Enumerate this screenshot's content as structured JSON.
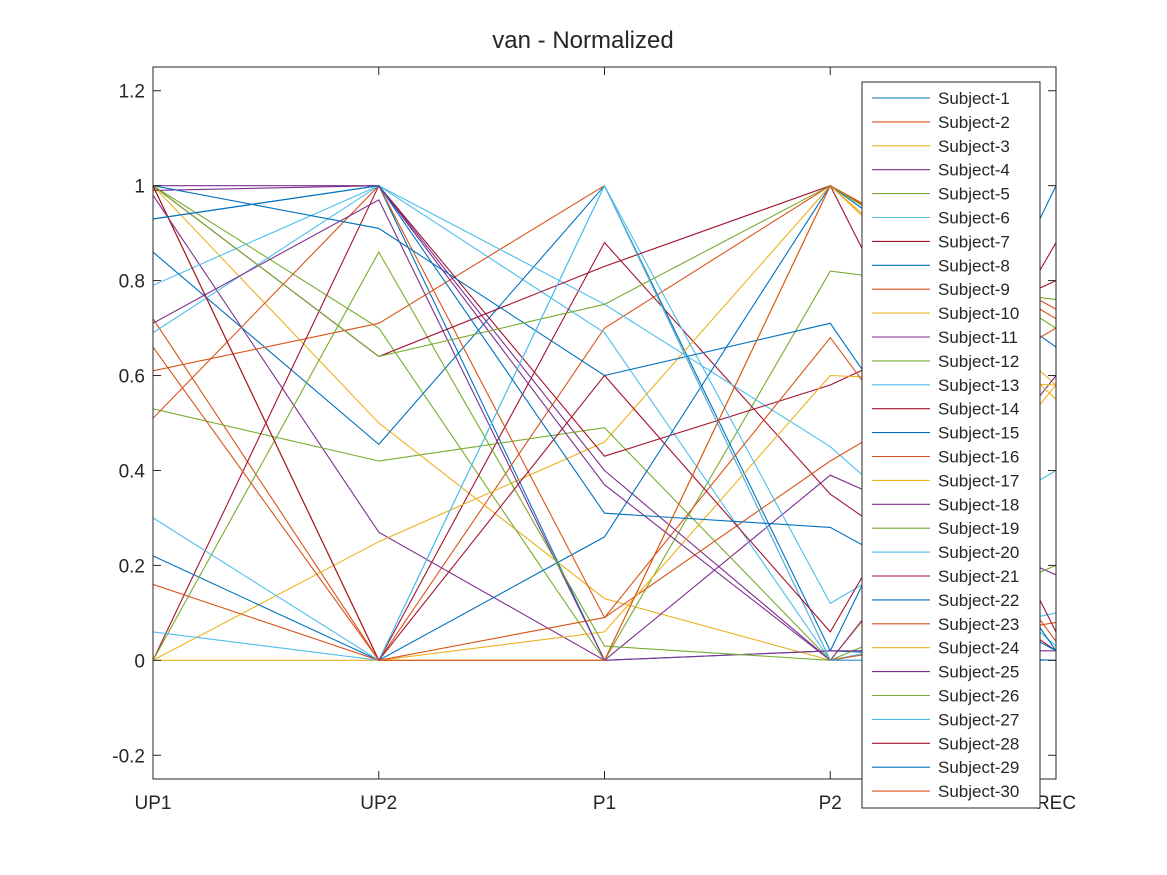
{
  "figure": {
    "title": "van - Normalized"
  },
  "chart_data": {
    "type": "line",
    "title": "van - Normalized",
    "xlabel": "",
    "ylabel": "",
    "categories": [
      "UP1",
      "UP2",
      "P1",
      "P2",
      "REC"
    ],
    "ylim": [
      -0.25,
      1.25
    ],
    "yticks": [
      "-0.2",
      "0",
      "0.2",
      "0.4",
      "0.6",
      "0.8",
      "1",
      "1.2"
    ],
    "ytick_values": [
      -0.2,
      0,
      0.2,
      0.4,
      0.6,
      0.8,
      1,
      1.2
    ],
    "grid": false,
    "legend_location": "northeast",
    "colors": [
      "#0072BD",
      "#D95319",
      "#EDB120",
      "#7E2F8E",
      "#77AC30",
      "#4DBEEE",
      "#A2142F"
    ],
    "series": [
      {
        "name": "Subject-1",
        "values": [
          0.93,
          1.0,
          0.0,
          0.02,
          1.0
        ]
      },
      {
        "name": "Subject-2",
        "values": [
          0.72,
          0.0,
          0.7,
          1.0,
          0.72
        ]
      },
      {
        "name": "Subject-3",
        "values": [
          1.0,
          0.5,
          0.13,
          0.0,
          0.58
        ]
      },
      {
        "name": "Subject-4",
        "values": [
          0.98,
          0.27,
          0.0,
          0.39,
          0.18
        ]
      },
      {
        "name": "Subject-5",
        "values": [
          1.0,
          0.7,
          0.0,
          0.82,
          0.76
        ]
      },
      {
        "name": "Subject-6",
        "values": [
          0.79,
          1.0,
          0.69,
          0.0,
          0.1
        ]
      },
      {
        "name": "Subject-7",
        "values": [
          1.0,
          0.0,
          0.88,
          0.35,
          0.02
        ]
      },
      {
        "name": "Subject-8",
        "values": [
          0.86,
          0.455,
          1.0,
          0.02,
          0.0
        ]
      },
      {
        "name": "Subject-9",
        "values": [
          0.61,
          0.71,
          1.0,
          0.0,
          0.08
        ]
      },
      {
        "name": "Subject-10",
        "values": [
          0.0,
          0.25,
          0.46,
          1.0,
          0.58
        ]
      },
      {
        "name": "Subject-11",
        "values": [
          0.99,
          1.0,
          0.4,
          0.0,
          0.6
        ]
      },
      {
        "name": "Subject-12",
        "values": [
          0.53,
          0.42,
          0.49,
          0.0,
          0.2
        ]
      },
      {
        "name": "Subject-13",
        "values": [
          0.69,
          1.0,
          0.75,
          0.45,
          0.03
        ]
      },
      {
        "name": "Subject-14",
        "values": [
          0.0,
          1.0,
          0.43,
          0.58,
          0.8
        ]
      },
      {
        "name": "Subject-15",
        "values": [
          0.22,
          0.0,
          0.26,
          1.0,
          0.66
        ]
      },
      {
        "name": "Subject-16",
        "values": [
          0.51,
          1.0,
          0.09,
          0.42,
          0.7
        ]
      },
      {
        "name": "Subject-17",
        "values": [
          1.0,
          0.0,
          0.06,
          0.6,
          0.58
        ]
      },
      {
        "name": "Subject-18",
        "values": [
          0.71,
          0.97,
          0.0,
          0.02,
          0.02
        ]
      },
      {
        "name": "Subject-19",
        "values": [
          0.0,
          0.86,
          0.03,
          0.0,
          0.0
        ]
      },
      {
        "name": "Subject-20",
        "values": [
          0.3,
          0.0,
          1.0,
          0.12,
          0.4
        ]
      },
      {
        "name": "Subject-21",
        "values": [
          1.0,
          0.64,
          0.83,
          1.0,
          0.06
        ]
      },
      {
        "name": "Subject-22",
        "values": [
          1.0,
          0.91,
          0.6,
          0.71,
          0.02
        ]
      },
      {
        "name": "Subject-23",
        "values": [
          0.16,
          0.0,
          0.09,
          0.68,
          0.04
        ]
      },
      {
        "name": "Subject-24",
        "values": [
          0.0,
          0.0,
          0.0,
          1.0,
          0.55
        ]
      },
      {
        "name": "Subject-25",
        "values": [
          1.0,
          1.0,
          0.37,
          0.0,
          0.0
        ]
      },
      {
        "name": "Subject-26",
        "values": [
          1.0,
          0.64,
          0.75,
          1.0,
          0.7
        ]
      },
      {
        "name": "Subject-27",
        "values": [
          0.06,
          0.0,
          1.0,
          0.0,
          0.0
        ]
      },
      {
        "name": "Subject-28",
        "values": [
          1.0,
          0.0,
          0.6,
          0.06,
          0.88
        ]
      },
      {
        "name": "Subject-29",
        "values": [
          0.93,
          1.0,
          0.31,
          0.28,
          0.02
        ]
      },
      {
        "name": "Subject-30",
        "values": [
          0.66,
          0.0,
          0.0,
          1.0,
          0.74
        ]
      }
    ]
  }
}
